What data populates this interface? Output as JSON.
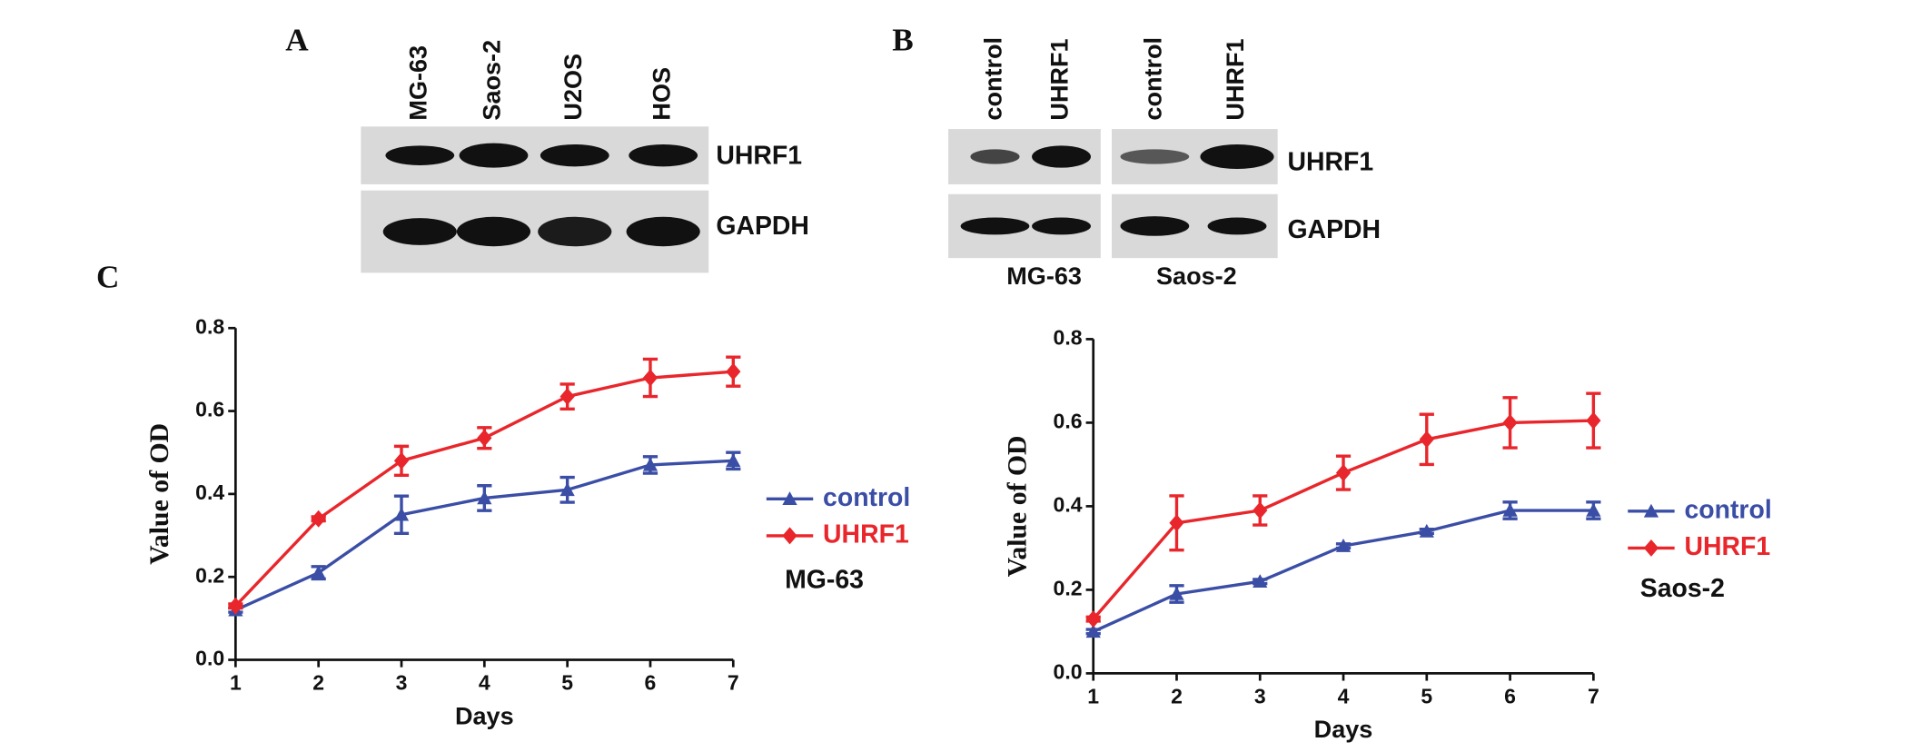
{
  "blots": [
    {
      "label": "A",
      "lanes": [
        "MG-63",
        "Saos-2",
        "U2OS",
        "HOS"
      ],
      "proteins": [
        "UHRF1",
        "GAPDH"
      ]
    },
    {
      "label": "B",
      "lanes": [
        "control",
        "UHRF1",
        "control",
        "UHRF1"
      ],
      "proteins": [
        "UHRF1",
        "GAPDH"
      ],
      "groups": [
        "MG-63",
        "Saos-2"
      ]
    }
  ],
  "panel_c_label": "C",
  "chart_data": [
    {
      "type": "line",
      "x": [
        1,
        2,
        3,
        4,
        5,
        6,
        7
      ],
      "xlim": [
        1,
        7
      ],
      "xticks": [
        1,
        2,
        3,
        4,
        5,
        6,
        7
      ],
      "ylim": [
        0,
        0.8
      ],
      "yticks": [
        {
          "value": 0,
          "label": "0.0"
        },
        0.2,
        0.4,
        0.6,
        0.8
      ],
      "x_label": "Days",
      "y_label": "Value of OD",
      "annotation": "MG-63",
      "series": [
        {
          "name": "control",
          "color": "#3b4ea6",
          "marker": "triangle",
          "values": [
            0.12,
            0.21,
            0.35,
            0.39,
            0.41,
            0.47,
            0.48
          ],
          "errors": [
            0.005,
            0.015,
            0.045,
            0.03,
            0.03,
            0.02,
            0.02
          ]
        },
        {
          "name": "UHRF1",
          "color": "#e8262b",
          "marker": "diamond",
          "values": [
            0.13,
            0.34,
            0.48,
            0.535,
            0.635,
            0.68,
            0.695
          ],
          "errors": [
            0.005,
            0.005,
            0.035,
            0.025,
            0.03,
            0.045,
            0.035
          ]
        }
      ]
    },
    {
      "type": "line",
      "x": [
        1,
        2,
        3,
        4,
        5,
        6,
        7
      ],
      "xlim": [
        1,
        7
      ],
      "xticks": [
        1,
        2,
        3,
        4,
        5,
        6,
        7
      ],
      "ylim": [
        0,
        0.8
      ],
      "yticks": [
        {
          "value": 0,
          "label": "0.0"
        },
        0.2,
        0.4,
        0.6,
        0.8
      ],
      "x_label": "Days",
      "y_label": "Value of OD",
      "annotation": "Saos-2",
      "series": [
        {
          "name": "control",
          "color": "#3b4ea6",
          "marker": "triangle",
          "values": [
            0.1,
            0.19,
            0.22,
            0.305,
            0.34,
            0.39,
            0.39
          ],
          "errors": [
            0.005,
            0.02,
            0.005,
            0.005,
            0.005,
            0.02,
            0.02
          ]
        },
        {
          "name": "UHRF1",
          "color": "#e8262b",
          "marker": "diamond",
          "values": [
            0.13,
            0.36,
            0.39,
            0.48,
            0.56,
            0.6,
            0.605
          ],
          "errors": [
            0.005,
            0.065,
            0.035,
            0.04,
            0.06,
            0.06,
            0.065
          ]
        }
      ]
    }
  ]
}
